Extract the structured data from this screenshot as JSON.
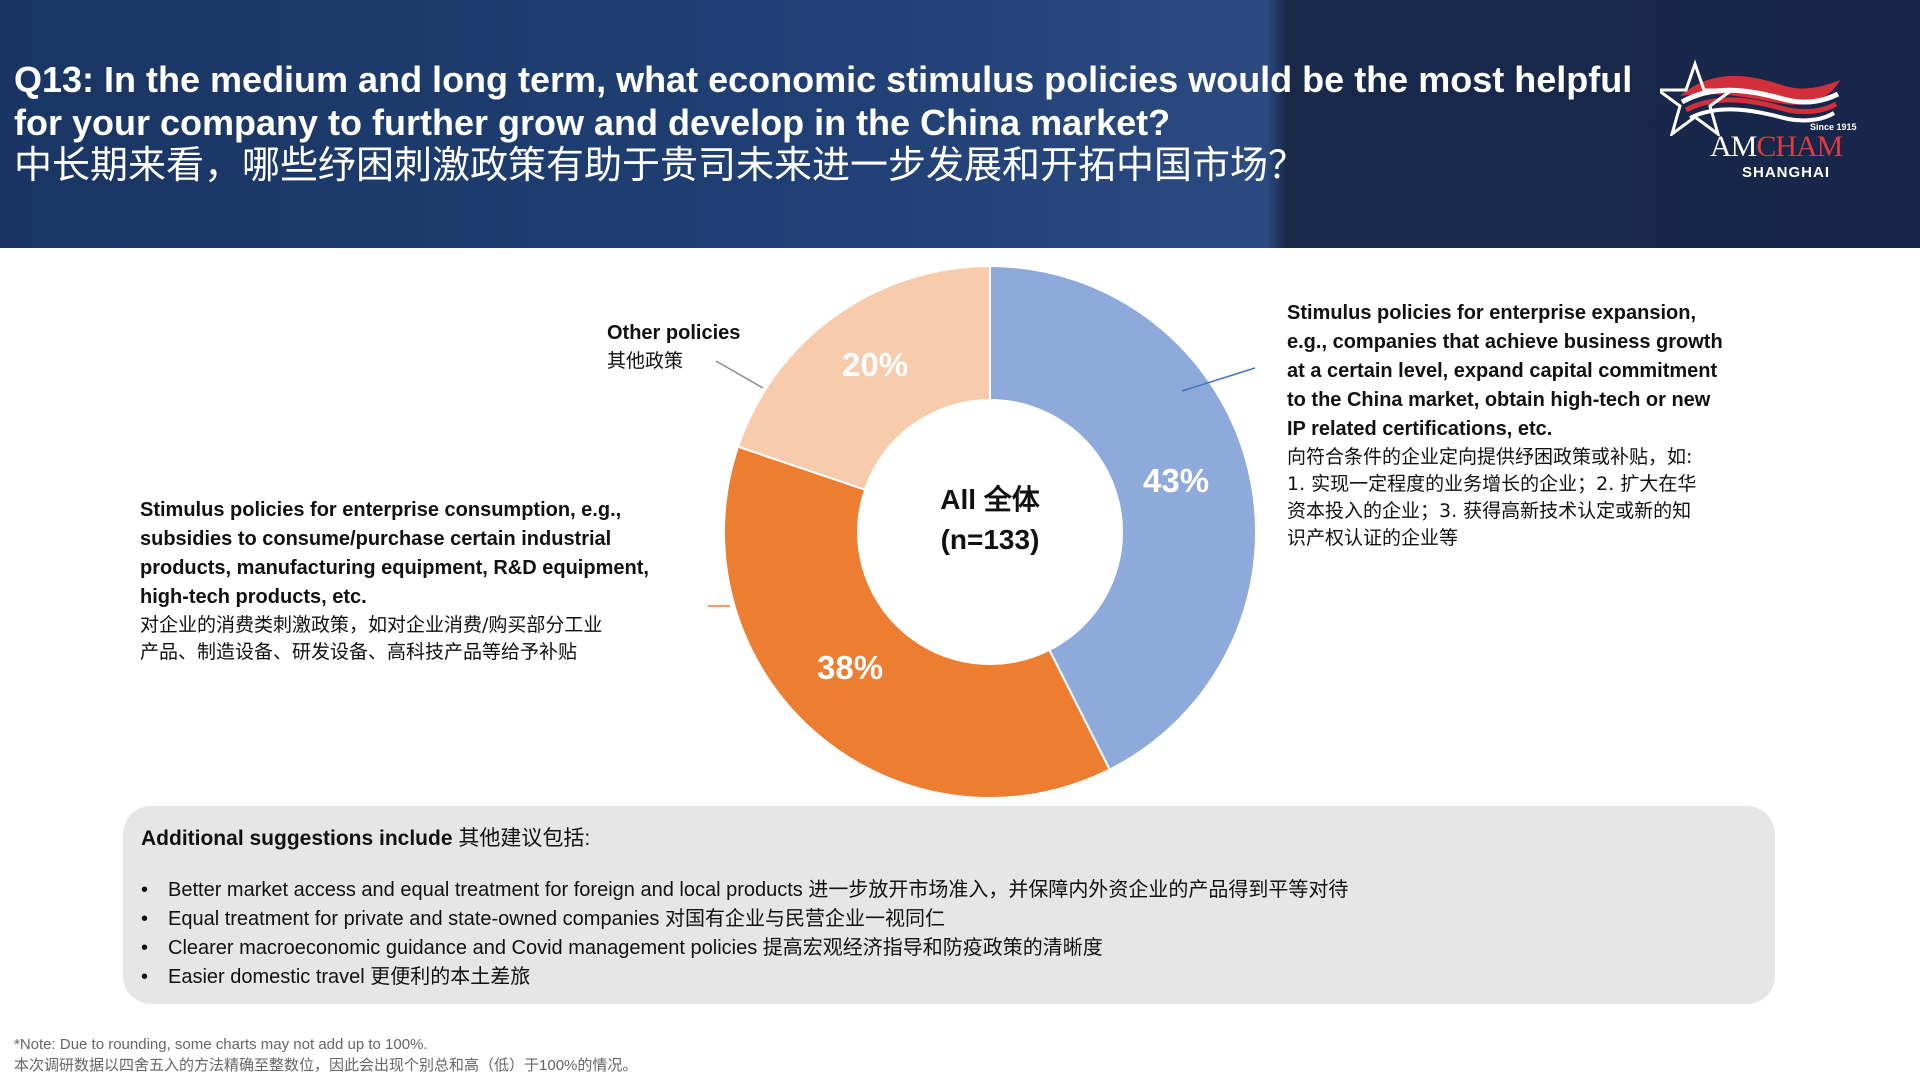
{
  "header": {
    "question_en": "Q13: In the medium and long term, what economic stimulus policies would be the most helpful for your company to further grow and develop in the China market?",
    "question_cn": "中长期来看，哪些纾困刺激政策有助于贵司未来进一步发展和开拓中国市场？"
  },
  "logo": {
    "since": "Since 1915",
    "am": "AM",
    "cham": "CHAM",
    "city": "SHANGHAI"
  },
  "chart_data": {
    "type": "pie",
    "center_label_line1": "All 全体",
    "center_label_line2": "(n=133)",
    "slices": [
      {
        "name": "Stimulus policies for enterprise expansion",
        "value": 43,
        "label": "43%",
        "color": "#8eaadb"
      },
      {
        "name": "Stimulus policies for enterprise consumption",
        "value": 38,
        "label": "38%",
        "color": "#ed7d31"
      },
      {
        "name": "Other policies",
        "value": 20,
        "label": "20%",
        "color": "#f8cbad"
      }
    ]
  },
  "labels": {
    "expansion_en": [
      "Stimulus policies for enterprise expansion,",
      "e.g., companies that achieve business growth",
      "at a certain level, expand capital commitment",
      "to the China market, obtain high-tech or new",
      "IP related certifications, etc."
    ],
    "expansion_cn": [
      "向符合条件的企业定向提供纾困政策或补贴，如:",
      "1. 实现一定程度的业务增长的企业；2. 扩大在华",
      "资本投入的企业；3. 获得高新技术认定或新的知",
      "识产权认证的企业等"
    ],
    "consumption_en": [
      "Stimulus policies for enterprise consumption, e.g.,",
      "subsidies to consume/purchase certain industrial",
      "products, manufacturing equipment, R&D equipment,",
      "high-tech products, etc."
    ],
    "consumption_cn": [
      "对企业的消费类刺激政策，如对企业消费/购买部分工业",
      "产品、制造设备、研发设备、高科技产品等给予补贴"
    ],
    "other_en": "Other policies",
    "other_cn": "其他政策"
  },
  "suggestions": {
    "title_bold": "Additional suggestions include",
    "title_cn": " 其他建议包括:",
    "items": [
      "Better market access and equal treatment for foreign and local products 进一步放开市场准入，并保障内外资企业的产品得到平等对待",
      "Equal treatment for private and state-owned companies 对国有企业与民营企业一视同仁",
      "Clearer macroeconomic guidance and Covid management policies 提高宏观经济指导和防疫政策的清晰度",
      "Easier domestic travel 更便利的本土差旅"
    ]
  },
  "note": {
    "en": "*Note: Due to rounding, some charts may not add up to 100%.",
    "cn": "本次调研数据以四舍五入的方法精确至整数位，因此会出现个别总和高（低）于100%的情况。"
  }
}
